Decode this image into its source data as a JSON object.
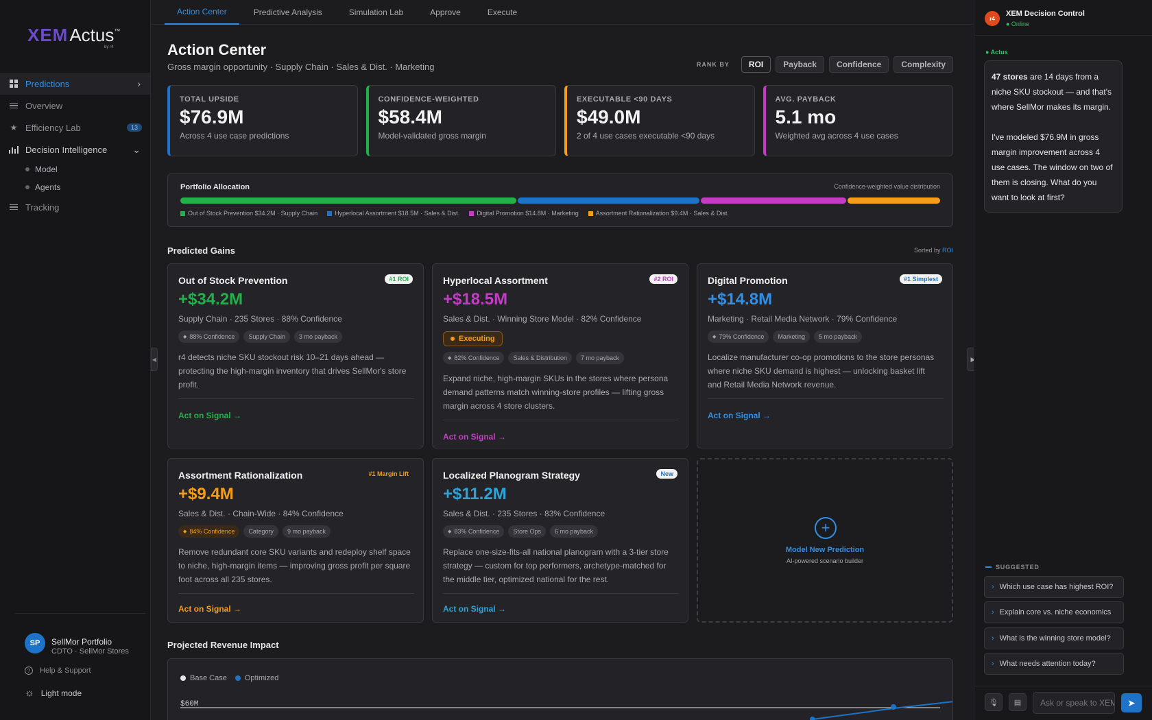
{
  "logo": {
    "primary": "XEM",
    "secondary": "Actus",
    "tm": "™",
    "byline": "by r4"
  },
  "sidebar": {
    "items": [
      {
        "label": "Predictions",
        "icon": "grid-icon"
      },
      {
        "label": "Overview",
        "icon": "list-icon"
      },
      {
        "label": "Efficiency Lab",
        "icon": "star-icon",
        "badge": "13"
      },
      {
        "label": "Decision Intelligence",
        "icon": "bar-chart-icon"
      }
    ],
    "subitems": [
      {
        "label": "Model"
      },
      {
        "label": "Agents"
      }
    ],
    "tracking": {
      "label": "Tracking"
    },
    "user": {
      "initials": "SP",
      "name": "SellMor Portfolio",
      "role": "CDTO · SellMor Stores"
    },
    "help": "Help & Support",
    "lightmode": "Light mode"
  },
  "tabs": [
    "Action Center",
    "Predictive Analysis",
    "Simulation Lab",
    "Approve",
    "Execute"
  ],
  "header": {
    "title": "Action Center",
    "subtitle": "Gross margin opportunity · Supply Chain · Sales & Dist. · Marketing",
    "rank_label": "RANK BY",
    "rank_options": [
      "ROI",
      "Payback",
      "Confidence",
      "Complexity"
    ],
    "rank_selected": "ROI"
  },
  "kpis": [
    {
      "label": "TOTAL UPSIDE",
      "value": "$76.9M",
      "sub": "Across 4 use case predictions",
      "color": "#1d73c8"
    },
    {
      "label": "CONFIDENCE-WEIGHTED",
      "value": "$58.4M",
      "sub": "Model-validated gross margin",
      "color": "#22b04a"
    },
    {
      "label": "EXECUTABLE <90 DAYS",
      "value": "$49.0M",
      "sub": "2 of 4 use cases executable <90 days",
      "color": "#f59c1a"
    },
    {
      "label": "AVG. PAYBACK",
      "value": "5.1 mo",
      "sub": "Weighted avg across 4 use cases",
      "color": "#c43cc4"
    }
  ],
  "allocation": {
    "title": "Portfolio Allocation",
    "note": "Confidence-weighted value distribution",
    "segments": [
      {
        "label": "Out of Stock Prevention $34.2M · Supply Chain",
        "value": 34.2,
        "color": "#22b04a"
      },
      {
        "label": "Hyperlocal Assortment $18.5M · Sales & Dist.",
        "value": 18.5,
        "color": "#1d73c8"
      },
      {
        "label": "Digital Promotion $14.8M · Marketing",
        "value": 14.8,
        "color": "#c43cc4"
      },
      {
        "label": "Assortment Rationalization $9.4M · Sales & Dist.",
        "value": 9.4,
        "color": "#f59c1a"
      }
    ]
  },
  "gains": {
    "title": "Predicted Gains",
    "sorted_prefix": "Sorted by ",
    "sorted_value": "ROI",
    "cards": [
      {
        "title": "Out of Stock Prevention",
        "badge": "#1 ROI",
        "badge_color": "#22b04a",
        "value": "+$34.2M",
        "color": "#22b04a",
        "meta": "Supply Chain · 235 Stores · 88% Confidence",
        "chips": [
          "88% Confidence",
          "Supply Chain",
          "3 mo payback"
        ],
        "desc": "r4 detects niche SKU stockout risk 10–21 days ahead — protecting the high-margin inventory that drives SellMor's store profit.",
        "action": "Act on Signal →"
      },
      {
        "title": "Hyperlocal Assortment",
        "badge": "#2 ROI",
        "badge_color": "#c43cc4",
        "value": "+$18.5M",
        "color": "#c43cc4",
        "meta": "Sales & Dist. · Winning Store Model · 82% Confidence",
        "status": "Executing",
        "chips": [
          "82% Confidence",
          "Sales & Distribution",
          "7 mo payback"
        ],
        "desc": "Expand niche, high-margin SKUs in the stores where persona demand patterns match winning-store profiles — lifting gross margin across 4 store clusters.",
        "action": "Act on Signal →"
      },
      {
        "title": "Digital Promotion",
        "badge": "#1 Simplest",
        "badge_color": "#1d73c8",
        "value": "+$14.8M",
        "color": "#2f8fe6",
        "meta": "Marketing · Retail Media Network · 79% Confidence",
        "chips": [
          "79% Confidence",
          "Marketing",
          "5 mo payback"
        ],
        "desc": "Localize manufacturer co-op promotions to the store personas where niche SKU demand is highest — unlocking basket lift and Retail Media Network revenue.",
        "action": "Act on Signal →"
      },
      {
        "title": "Assortment Rationalization",
        "badge": "#1 Margin Lift",
        "badge_color": "#f59c1a",
        "value": "+$9.4M",
        "color": "#f59c1a",
        "meta": "Sales & Dist. · Chain-Wide · 84% Confidence",
        "chips": [
          "84% Confidence",
          "Category",
          "9 mo payback"
        ],
        "desc": "Remove redundant core SKU variants and redeploy shelf space to niche, high-margin items — improving gross profit per square foot across all 235 stores.",
        "action": "Act on Signal →"
      },
      {
        "title": "Localized Planogram Strategy",
        "badge": "New",
        "badge_color": "#1d73c8",
        "value": "+$11.2M",
        "color": "#2fa3d6",
        "meta": "Sales & Dist. · 235 Stores · 83% Confidence",
        "chips": [
          "83% Confidence",
          "Store Ops",
          "6 mo payback"
        ],
        "desc": "Replace one-size-fits-all national planogram with a 3-tier store strategy — custom for top performers, archetype-matched for the middle tier, optimized national for the rest.",
        "action": "Act on Signal →"
      }
    ],
    "new_card": {
      "title": "Model New Prediction",
      "sub": "AI-powered scenario builder"
    }
  },
  "projection": {
    "title": "Projected Revenue Impact",
    "legend": [
      {
        "name": "Base Case",
        "color": "#e6e6e6"
      },
      {
        "name": "Optimized",
        "color": "#1d73c8"
      }
    ],
    "tick": "$60M"
  },
  "panel": {
    "avatar": "r4",
    "title": "XEM Decision Control",
    "status": "● Online",
    "agent_label": "● Actus",
    "message_bold": "47 stores",
    "message_rest": " are 14 days from a niche SKU stockout — and that's where SellMor makes its margin.",
    "message_2": "I've modeled $76.9M in gross margin improvement across 4 use cases. The window on two of them is closing. What do you want to look at first?",
    "suggested_label": "SUGGESTED",
    "suggestions": [
      "Which use case has highest ROI?",
      "Explain core vs. niche economics",
      "What is the winning store model?",
      "What needs attention today?"
    ],
    "input_placeholder": "Ask or speak to XEM"
  }
}
